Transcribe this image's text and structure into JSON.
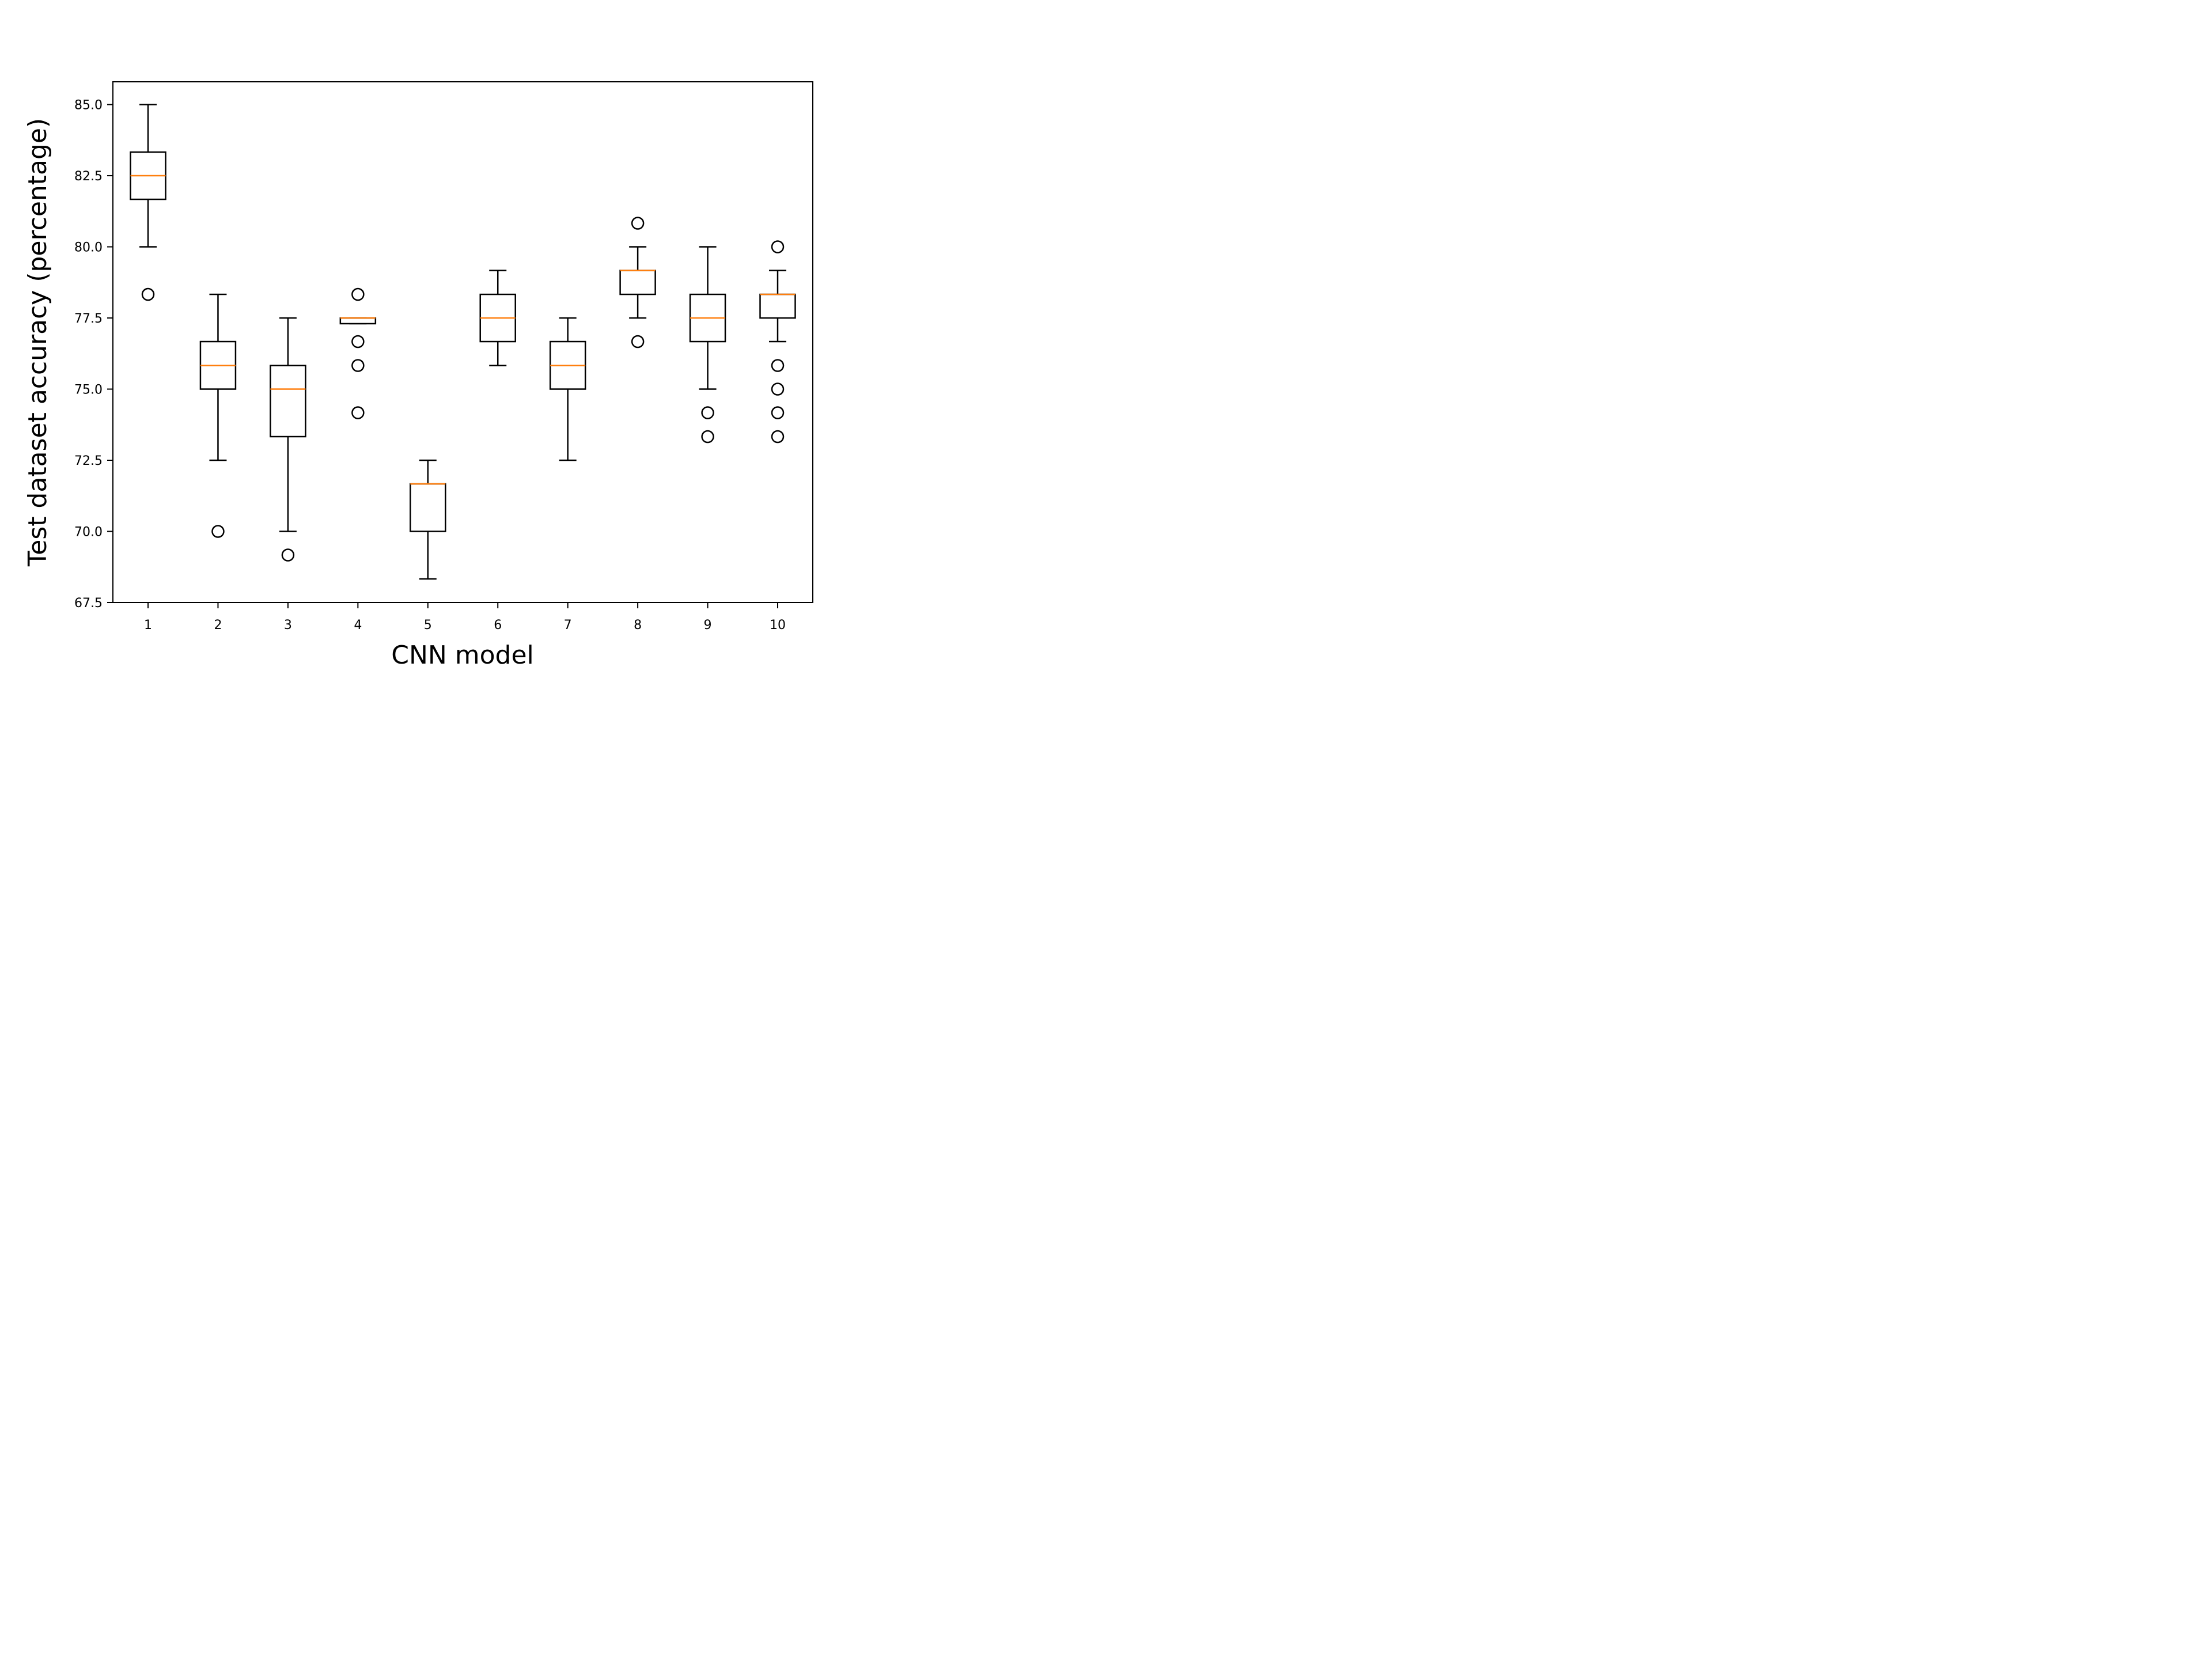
{
  "chart_data": {
    "type": "box",
    "xlabel": "CNN model",
    "ylabel": "Test dataset accuracy (percentage)",
    "categories": [
      "1",
      "2",
      "3",
      "4",
      "5",
      "6",
      "7",
      "8",
      "9",
      "10"
    ],
    "ylim": [
      67.5,
      85.8
    ],
    "yticks": [
      67.5,
      70.0,
      72.5,
      75.0,
      77.5,
      80.0,
      82.5,
      85.0
    ],
    "ytick_labels": [
      "67.5",
      "70.0",
      "72.5",
      "75.0",
      "77.5",
      "80.0",
      "82.5",
      "85.0"
    ],
    "grid": false,
    "colors": {
      "box": "#000000",
      "median": "#ff7f0e"
    },
    "boxes": [
      {
        "category": "1",
        "whisker_low": 80.0,
        "q1": 81.67,
        "median": 82.5,
        "q3": 83.33,
        "whisker_high": 85.0,
        "outliers": [
          78.33
        ]
      },
      {
        "category": "2",
        "whisker_low": 72.5,
        "q1": 75.0,
        "median": 75.83,
        "q3": 76.67,
        "whisker_high": 78.33,
        "outliers": [
          70.0
        ]
      },
      {
        "category": "3",
        "whisker_low": 70.0,
        "q1": 73.33,
        "median": 75.0,
        "q3": 75.83,
        "whisker_high": 77.5,
        "outliers": [
          69.17
        ]
      },
      {
        "category": "4",
        "whisker_low": 77.3,
        "q1": 77.3,
        "median": 77.5,
        "q3": 77.5,
        "whisker_high": 77.5,
        "outliers": [
          78.33,
          76.67,
          75.83,
          74.17
        ]
      },
      {
        "category": "5",
        "whisker_low": 68.33,
        "q1": 70.0,
        "median": 71.67,
        "q3": 71.67,
        "whisker_high": 72.5,
        "outliers": []
      },
      {
        "category": "6",
        "whisker_low": 75.83,
        "q1": 76.67,
        "median": 77.5,
        "q3": 78.33,
        "whisker_high": 79.17,
        "outliers": []
      },
      {
        "category": "7",
        "whisker_low": 72.5,
        "q1": 75.0,
        "median": 75.83,
        "q3": 76.67,
        "whisker_high": 77.5,
        "outliers": []
      },
      {
        "category": "8",
        "whisker_low": 77.5,
        "q1": 78.33,
        "median": 79.17,
        "q3": 79.17,
        "whisker_high": 80.0,
        "outliers": [
          80.83,
          76.67
        ]
      },
      {
        "category": "9",
        "whisker_low": 75.0,
        "q1": 76.67,
        "median": 77.5,
        "q3": 78.33,
        "whisker_high": 80.0,
        "outliers": [
          74.17,
          73.33
        ]
      },
      {
        "category": "10",
        "whisker_low": 76.67,
        "q1": 77.5,
        "median": 78.33,
        "q3": 78.33,
        "whisker_high": 79.17,
        "outliers": [
          80.0,
          75.83,
          75.0,
          74.17,
          73.33
        ]
      }
    ]
  }
}
